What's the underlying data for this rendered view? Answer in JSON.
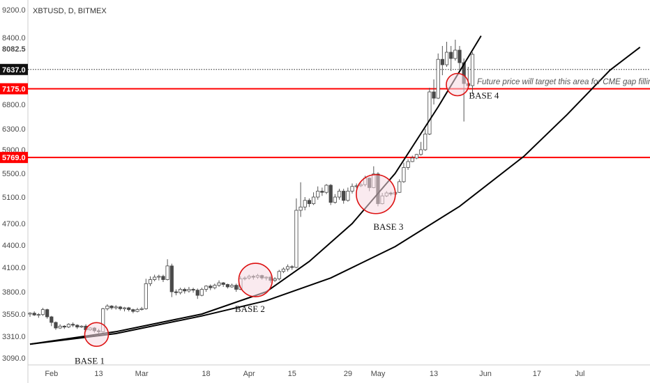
{
  "chart_data": {
    "type": "candlestick",
    "title": "XBTUSD, D, BITMEX",
    "y_axis": {
      "range": [
        2990,
        9300
      ],
      "ticks": [
        9200.0,
        8400.0,
        6800.0,
        6300.0,
        5900.0,
        5500.0,
        5100.0,
        4700.0,
        4400.0,
        4100.0,
        3800.0,
        3550.0,
        3310.0,
        3090.0
      ],
      "tick_labels": [
        "9200.0",
        "8400.0",
        "6800.0",
        "6300.0",
        "5900.0",
        "5500.0",
        "5100.0",
        "4700.0",
        "4400.0",
        "4100.0",
        "3800.0",
        "3550.0",
        "3310.0",
        "3090.0"
      ],
      "extra_label": "8082.5",
      "side": "left"
    },
    "x_axis": {
      "range_days": [
        0,
        170
      ],
      "ticks": [
        {
          "day": 5,
          "label": "Feb"
        },
        {
          "day": 16,
          "label": "13"
        },
        {
          "day": 26,
          "label": "Mar"
        },
        {
          "day": 41,
          "label": "18"
        },
        {
          "day": 51,
          "label": "Apr"
        },
        {
          "day": 61,
          "label": "15"
        },
        {
          "day": 74,
          "label": "29"
        },
        {
          "day": 81,
          "label": "May"
        },
        {
          "day": 94,
          "label": "13"
        },
        {
          "day": 106,
          "label": "Jun"
        },
        {
          "day": 118,
          "label": "17"
        },
        {
          "day": 128,
          "label": "Jul"
        }
      ]
    },
    "price_tags": [
      {
        "value": 7637.0,
        "label": "7637.0",
        "style": "current",
        "color": "#111111",
        "line": "dotted"
      },
      {
        "value": 7175.0,
        "label": "7175.0",
        "style": "level",
        "color": "#ff0000",
        "line": "solid"
      },
      {
        "value": 5769.0,
        "label": "5769.0",
        "style": "level",
        "color": "#ff0000",
        "line": "solid"
      }
    ],
    "candles": [
      [
        3550,
        3560,
        3520,
        3570
      ],
      [
        3560,
        3540,
        3530,
        3580
      ],
      [
        3540,
        3545,
        3510,
        3560
      ],
      [
        3545,
        3600,
        3530,
        3620
      ],
      [
        3600,
        3520,
        3500,
        3610
      ],
      [
        3520,
        3460,
        3420,
        3530
      ],
      [
        3460,
        3400,
        3380,
        3470
      ],
      [
        3400,
        3420,
        3390,
        3440
      ],
      [
        3420,
        3410,
        3390,
        3430
      ],
      [
        3410,
        3440,
        3400,
        3450
      ],
      [
        3440,
        3430,
        3410,
        3460
      ],
      [
        3430,
        3410,
        3390,
        3440
      ],
      [
        3410,
        3420,
        3400,
        3430
      ],
      [
        3420,
        3380,
        3360,
        3440
      ],
      [
        3380,
        3400,
        3370,
        3410
      ],
      [
        3400,
        3370,
        3350,
        3410
      ],
      [
        3370,
        3360,
        3340,
        3390
      ],
      [
        3360,
        3610,
        3350,
        3620
      ],
      [
        3610,
        3640,
        3590,
        3660
      ],
      [
        3640,
        3620,
        3600,
        3650
      ],
      [
        3620,
        3630,
        3600,
        3650
      ],
      [
        3630,
        3610,
        3590,
        3640
      ],
      [
        3610,
        3620,
        3580,
        3630
      ],
      [
        3620,
        3600,
        3580,
        3630
      ],
      [
        3600,
        3580,
        3560,
        3610
      ],
      [
        3580,
        3600,
        3570,
        3620
      ],
      [
        3600,
        3610,
        3590,
        3630
      ],
      [
        3610,
        3900,
        3600,
        3960
      ],
      [
        3900,
        3950,
        3870,
        3990
      ],
      [
        3950,
        3980,
        3930,
        4010
      ],
      [
        3980,
        3990,
        3940,
        4010
      ],
      [
        3990,
        3950,
        3920,
        4010
      ],
      [
        3950,
        4120,
        3940,
        4210
      ],
      [
        4120,
        3800,
        3740,
        4150
      ],
      [
        3800,
        3790,
        3760,
        3830
      ],
      [
        3790,
        3830,
        3770,
        3850
      ],
      [
        3830,
        3810,
        3780,
        3850
      ],
      [
        3810,
        3830,
        3790,
        3860
      ],
      [
        3830,
        3820,
        3790,
        3850
      ],
      [
        3820,
        3760,
        3720,
        3840
      ],
      [
        3760,
        3830,
        3750,
        3850
      ],
      [
        3830,
        3870,
        3800,
        3880
      ],
      [
        3870,
        3850,
        3820,
        3890
      ],
      [
        3850,
        3880,
        3830,
        3900
      ],
      [
        3880,
        3910,
        3860,
        3940
      ],
      [
        3910,
        3890,
        3860,
        3920
      ],
      [
        3890,
        3860,
        3840,
        3900
      ],
      [
        3860,
        3880,
        3850,
        3900
      ],
      [
        3880,
        3830,
        3800,
        3900
      ],
      [
        3830,
        3960,
        3820,
        3990
      ],
      [
        3960,
        3970,
        3940,
        3990
      ],
      [
        3970,
        3990,
        3950,
        4010
      ],
      [
        3990,
        3980,
        3950,
        4010
      ],
      [
        3980,
        4000,
        3960,
        4020
      ],
      [
        4000,
        3970,
        3950,
        4010
      ],
      [
        3970,
        3980,
        3940,
        3990
      ],
      [
        3980,
        3940,
        3910,
        4000
      ],
      [
        3940,
        3960,
        3920,
        3980
      ],
      [
        3960,
        4050,
        3940,
        4070
      ],
      [
        4050,
        4080,
        4030,
        4100
      ],
      [
        4080,
        4110,
        4050,
        4140
      ],
      [
        4110,
        4100,
        4070,
        4130
      ],
      [
        4100,
        4900,
        4090,
        5080
      ],
      [
        4900,
        4950,
        4800,
        5350
      ],
      [
        4950,
        5050,
        4900,
        5100
      ],
      [
        5050,
        5000,
        4950,
        5080
      ],
      [
        5000,
        5100,
        4980,
        5180
      ],
      [
        5100,
        5200,
        5060,
        5280
      ],
      [
        5200,
        5180,
        5120,
        5260
      ],
      [
        5180,
        5300,
        5150,
        5320
      ],
      [
        5300,
        5020,
        4980,
        5320
      ],
      [
        5020,
        5100,
        5000,
        5150
      ],
      [
        5100,
        5200,
        5060,
        5240
      ],
      [
        5200,
        5050,
        5000,
        5240
      ],
      [
        5050,
        5200,
        5030,
        5260
      ],
      [
        5200,
        5280,
        5160,
        5330
      ],
      [
        5280,
        5290,
        5250,
        5330
      ],
      [
        5290,
        5310,
        5270,
        5340
      ],
      [
        5310,
        5420,
        5280,
        5460
      ],
      [
        5420,
        5260,
        5200,
        5430
      ],
      [
        5260,
        5490,
        5250,
        5620
      ],
      [
        5490,
        5000,
        4960,
        5520
      ],
      [
        5000,
        5120,
        4990,
        5170
      ],
      [
        5120,
        5170,
        5100,
        5200
      ],
      [
        5170,
        5150,
        5120,
        5190
      ],
      [
        5150,
        5180,
        5130,
        5220
      ],
      [
        5180,
        5360,
        5170,
        5400
      ],
      [
        5360,
        5600,
        5340,
        5680
      ],
      [
        5600,
        5700,
        5560,
        5740
      ],
      [
        5700,
        5760,
        5690,
        5800
      ],
      [
        5760,
        5820,
        5740,
        5830
      ],
      [
        5820,
        5900,
        5800,
        6050
      ],
      [
        5900,
        6200,
        5880,
        6300
      ],
      [
        6200,
        7100,
        6180,
        7200
      ],
      [
        7100,
        6950,
        6800,
        7400
      ],
      [
        6950,
        7880,
        6930,
        8020
      ],
      [
        7880,
        7750,
        7500,
        8200
      ],
      [
        7750,
        8050,
        7700,
        8300
      ],
      [
        8050,
        7900,
        7600,
        8200
      ],
      [
        7900,
        8100,
        7850,
        8350
      ],
      [
        8100,
        7800,
        7600,
        8200
      ],
      [
        7800,
        7300,
        6450,
        7900
      ],
      [
        7300,
        7250,
        7200,
        7700
      ],
      [
        7250,
        8000,
        7050,
        8050
      ]
    ],
    "curves": [
      {
        "name": "",
        "points": [
          [
            0,
            3230
          ],
          [
            20,
            3360
          ],
          [
            40,
            3550
          ],
          [
            55,
            3800
          ],
          [
            65,
            4180
          ],
          [
            75,
            4700
          ],
          [
            85,
            5500
          ],
          [
            95,
            6750
          ],
          [
            105,
            8450
          ]
        ]
      },
      {
        "name": "",
        "points": [
          [
            0,
            3230
          ],
          [
            20,
            3340
          ],
          [
            40,
            3530
          ],
          [
            55,
            3700
          ],
          [
            70,
            3970
          ],
          [
            85,
            4380
          ],
          [
            100,
            4960
          ],
          [
            115,
            5790
          ],
          [
            125,
            6590
          ],
          [
            135,
            7620
          ],
          [
            142,
            8170
          ]
        ]
      }
    ],
    "circles": [
      {
        "label": "BASE 1",
        "day": 15.5,
        "price": 3330,
        "r": 17
      },
      {
        "label": "BASE 2",
        "day": 52.5,
        "price": 3945,
        "r": 24
      },
      {
        "label": "BASE 3",
        "day": 80.5,
        "price": 5150,
        "r": 28
      },
      {
        "label": "BASE 4",
        "day": 99.5,
        "price": 7275,
        "r": 16
      }
    ],
    "annotation": "Future price will target this area for CME gap filling"
  },
  "colors": {
    "up_candle": "#ffffff",
    "down_candle": "#4a4a4a",
    "wick": "#555555",
    "level_line": "#ff0000",
    "curve": "#000000",
    "circle_stroke": "#dd1111",
    "circle_fill": "#f5d9e2"
  }
}
